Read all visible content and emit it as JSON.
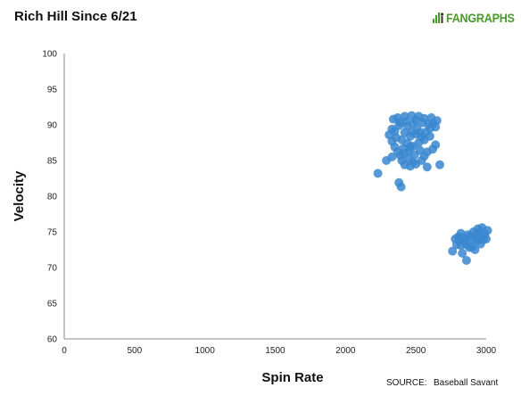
{
  "header": {
    "title": "Rich Hill  Since 6/21",
    "logo_text": "FANGRAPHS",
    "logo_color": "#4a9a2a"
  },
  "source": {
    "label": "SOURCE:",
    "name": "Baseball Savant"
  },
  "chart_data": {
    "type": "scatter",
    "title": "Rich Hill  Since 6/21",
    "xlabel": "Spin Rate",
    "ylabel": "Velocity",
    "xlim": [
      0,
      3000
    ],
    "ylim": [
      60,
      100
    ],
    "xticks": [
      0,
      500,
      1000,
      1500,
      2000,
      2500,
      3000
    ],
    "yticks": [
      60,
      65,
      70,
      75,
      80,
      85,
      90,
      95,
      100
    ],
    "grid": false,
    "legend": "none",
    "marker_color": "#3a87d0",
    "points": [
      [
        2230,
        83.2
      ],
      [
        2290,
        85.0
      ],
      [
        2330,
        85.5
      ],
      [
        2380,
        81.9
      ],
      [
        2395,
        81.3
      ],
      [
        2340,
        90.8
      ],
      [
        2370,
        91.0
      ],
      [
        2420,
        91.2
      ],
      [
        2470,
        91.3
      ],
      [
        2520,
        91.2
      ],
      [
        2560,
        90.9
      ],
      [
        2610,
        91.0
      ],
      [
        2650,
        90.6
      ],
      [
        2640,
        89.7
      ],
      [
        2600,
        89.5
      ],
      [
        2330,
        89.4
      ],
      [
        2310,
        88.6
      ],
      [
        2330,
        87.7
      ],
      [
        2350,
        86.9
      ],
      [
        2370,
        86.2
      ],
      [
        2390,
        85.7
      ],
      [
        2400,
        85.0
      ],
      [
        2420,
        84.4
      ],
      [
        2460,
        84.2
      ],
      [
        2500,
        84.5
      ],
      [
        2540,
        85.0
      ],
      [
        2560,
        85.6
      ],
      [
        2580,
        86.2
      ],
      [
        2620,
        86.6
      ],
      [
        2640,
        87.2
      ],
      [
        2580,
        84.1
      ],
      [
        2670,
        84.4
      ],
      [
        2440,
        89.8
      ],
      [
        2480,
        90.2
      ],
      [
        2510,
        89.6
      ],
      [
        2420,
        88.9
      ],
      [
        2460,
        88.4
      ],
      [
        2500,
        88.7
      ],
      [
        2540,
        88.3
      ],
      [
        2570,
        89.0
      ],
      [
        2400,
        87.9
      ],
      [
        2440,
        87.4
      ],
      [
        2480,
        87.0
      ],
      [
        2520,
        87.5
      ],
      [
        2560,
        87.9
      ],
      [
        2410,
        86.7
      ],
      [
        2450,
        86.3
      ],
      [
        2490,
        85.8
      ],
      [
        2530,
        86.4
      ],
      [
        2600,
        88.4
      ],
      [
        2380,
        89.9
      ],
      [
        2360,
        88.2
      ],
      [
        2620,
        90.2
      ],
      [
        2470,
        89.0
      ],
      [
        2430,
        90.5
      ],
      [
        2500,
        90.7
      ],
      [
        2550,
        90.3
      ],
      [
        2590,
        90.1
      ],
      [
        2450,
        85.2
      ],
      [
        2480,
        84.8
      ],
      [
        2350,
        89.1
      ],
      [
        2390,
        90.3
      ],
      [
        2530,
        88.9
      ],
      [
        2460,
        86.9
      ],
      [
        2420,
        86.0
      ],
      [
        2760,
        72.3
      ],
      [
        2790,
        73.2
      ],
      [
        2800,
        74.3
      ],
      [
        2820,
        74.8
      ],
      [
        2830,
        72.0
      ],
      [
        2850,
        73.6
      ],
      [
        2860,
        71.0
      ],
      [
        2870,
        74.6
      ],
      [
        2880,
        72.8
      ],
      [
        2900,
        73.9
      ],
      [
        2910,
        75.0
      ],
      [
        2920,
        72.5
      ],
      [
        2940,
        75.4
      ],
      [
        2950,
        74.1
      ],
      [
        2960,
        73.3
      ],
      [
        2970,
        75.6
      ],
      [
        2990,
        74.7
      ],
      [
        3000,
        74.0
      ],
      [
        3010,
        75.2
      ],
      [
        2780,
        74.0
      ],
      [
        2810,
        73.8
      ],
      [
        2840,
        74.2
      ],
      [
        2890,
        74.4
      ],
      [
        2930,
        73.7
      ],
      [
        2980,
        73.9
      ],
      [
        2860,
        73.2
      ],
      [
        2900,
        72.9
      ],
      [
        2940,
        74.8
      ],
      [
        2820,
        73.1
      ],
      [
        2960,
        75.0
      ]
    ]
  }
}
